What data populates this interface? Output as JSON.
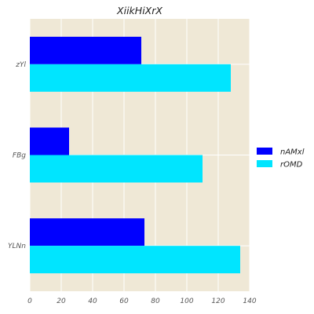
{
  "chart_data": {
    "type": "bar",
    "orientation": "horizontal",
    "title": "XiikHiXrX",
    "xlabel": "",
    "ylabel": "",
    "categories": [
      "zYl",
      "FBg",
      "YLNn"
    ],
    "series": [
      {
        "name": "nAMxl",
        "values": [
          71,
          25,
          73
        ],
        "color": "#0000ff"
      },
      {
        "name": "rOMD",
        "values": [
          128,
          110,
          134
        ],
        "color": "#00e5ff"
      }
    ],
    "xlim": [
      0,
      140
    ],
    "xticks": [
      "0",
      "20",
      "40",
      "60",
      "80",
      "100",
      "120",
      "140"
    ],
    "grid": true,
    "legend_position": "right",
    "background_color": "#efe8d6",
    "grid_color": "#ffffff"
  }
}
